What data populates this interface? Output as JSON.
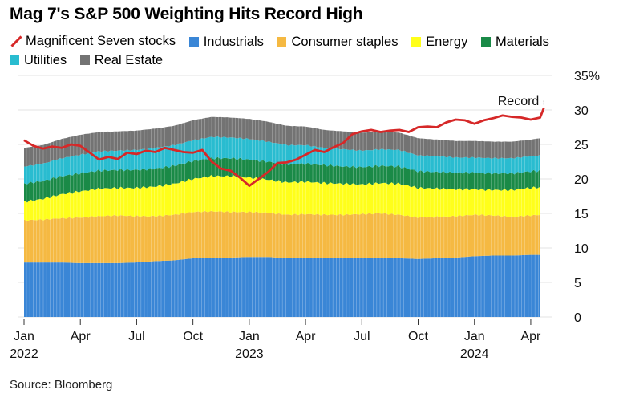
{
  "title": "Mag 7's S&P 500 Weighting Hits Record High",
  "source": "Source: Bloomberg",
  "annotation": "Record",
  "chart_data": {
    "type": "area",
    "title": "Mag 7's S&P 500 Weighting Hits Record High",
    "ylim": [
      0,
      35
    ],
    "yticks": [
      "35%",
      "30",
      "25",
      "20",
      "15",
      "10",
      "5",
      "0"
    ],
    "xticks": [
      {
        "label": "Jan",
        "year": "2022",
        "t": 0
      },
      {
        "label": "Apr",
        "year": "",
        "t": 3
      },
      {
        "label": "Jul",
        "year": "",
        "t": 6
      },
      {
        "label": "Oct",
        "year": "",
        "t": 9
      },
      {
        "label": "Jan",
        "year": "2023",
        "t": 12
      },
      {
        "label": "Apr",
        "year": "",
        "t": 15
      },
      {
        "label": "Jul",
        "year": "",
        "t": 18
      },
      {
        "label": "Oct",
        "year": "",
        "t": 21
      },
      {
        "label": "Jan",
        "year": "2024",
        "t": 24
      },
      {
        "label": "Apr",
        "year": "",
        "t": 27
      }
    ],
    "grid": true,
    "legend_position": "top",
    "x_months": [
      0,
      1,
      2,
      3,
      4,
      5,
      6,
      7,
      8,
      9,
      10,
      11,
      12,
      13,
      14,
      15,
      16,
      17,
      18,
      19,
      20,
      21,
      22,
      23,
      24,
      25,
      26,
      27,
      27.5
    ],
    "stacked_series": [
      {
        "name": "Industrials",
        "color": "#3a86d6",
        "values": [
          7.9,
          7.9,
          7.9,
          7.8,
          7.8,
          7.8,
          7.9,
          8.1,
          8.2,
          8.5,
          8.6,
          8.6,
          8.7,
          8.7,
          8.5,
          8.5,
          8.5,
          8.5,
          8.6,
          8.6,
          8.5,
          8.4,
          8.5,
          8.6,
          8.8,
          8.9,
          8.9,
          9.0,
          9.0
        ]
      },
      {
        "name": "Consumer staples",
        "color": "#f5b942",
        "values": [
          6.1,
          6.2,
          6.4,
          6.6,
          6.8,
          6.9,
          6.7,
          6.5,
          6.6,
          6.7,
          6.7,
          6.6,
          6.5,
          6.4,
          6.3,
          6.4,
          6.3,
          6.3,
          6.3,
          6.4,
          6.3,
          6.0,
          6.0,
          6.0,
          6.0,
          5.8,
          5.6,
          5.7,
          5.8
        ]
      },
      {
        "name": "Energy",
        "color": "#ffff1a",
        "values": [
          2.7,
          3.0,
          3.5,
          3.8,
          4.0,
          4.0,
          4.1,
          4.3,
          4.5,
          4.8,
          5.1,
          5.2,
          5.0,
          4.8,
          4.7,
          4.7,
          4.6,
          4.5,
          4.3,
          4.4,
          4.5,
          4.3,
          4.1,
          3.9,
          3.7,
          3.7,
          3.9,
          4.0,
          4.0
        ]
      },
      {
        "name": "Materials",
        "color": "#1a8a47",
        "values": [
          2.6,
          2.6,
          2.6,
          2.6,
          2.6,
          2.6,
          2.6,
          2.6,
          2.6,
          2.6,
          2.6,
          2.6,
          2.6,
          2.6,
          2.6,
          2.6,
          2.6,
          2.5,
          2.5,
          2.5,
          2.5,
          2.4,
          2.4,
          2.4,
          2.4,
          2.4,
          2.4,
          2.4,
          2.4
        ]
      },
      {
        "name": "Utilities",
        "color": "#29bcd0",
        "values": [
          2.5,
          2.5,
          2.6,
          2.7,
          2.8,
          2.8,
          2.9,
          3.0,
          3.0,
          3.0,
          3.1,
          3.0,
          3.0,
          2.9,
          2.8,
          2.7,
          2.5,
          2.5,
          2.4,
          2.4,
          2.4,
          2.3,
          2.3,
          2.2,
          2.2,
          2.2,
          2.2,
          2.2,
          2.2
        ]
      },
      {
        "name": "Real Estate",
        "color": "#737373",
        "values": [
          2.7,
          2.7,
          2.8,
          2.9,
          2.8,
          2.8,
          2.8,
          2.8,
          2.8,
          2.9,
          2.9,
          2.9,
          2.9,
          2.9,
          2.8,
          2.7,
          2.6,
          2.6,
          2.6,
          2.6,
          2.5,
          2.5,
          2.4,
          2.4,
          2.4,
          2.4,
          2.4,
          2.4,
          2.5
        ]
      }
    ],
    "line_series": {
      "name": "Magnificent Seven stocks",
      "color": "#d62828",
      "x": [
        0,
        0.5,
        1,
        1.5,
        2,
        2.5,
        3,
        3.5,
        4,
        4.5,
        5,
        5.5,
        6,
        6.5,
        7,
        7.5,
        8,
        8.5,
        9,
        9.5,
        10,
        10.5,
        11,
        11.5,
        12,
        12.5,
        13,
        13.5,
        14,
        14.5,
        15,
        15.5,
        16,
        16.5,
        17,
        17.5,
        18,
        18.5,
        19,
        19.5,
        20,
        20.5,
        21,
        21.5,
        22,
        22.5,
        23,
        23.5,
        24,
        24.5,
        25,
        25.5,
        26,
        26.5,
        27,
        27.5,
        27.7
      ],
      "values": [
        25.6,
        24.8,
        24.4,
        24.7,
        24.5,
        25.0,
        24.8,
        23.8,
        22.8,
        23.2,
        22.9,
        23.8,
        23.6,
        24.1,
        23.9,
        24.5,
        24.2,
        23.9,
        23.8,
        24.2,
        22.5,
        21.5,
        21.2,
        20.2,
        19.0,
        20.0,
        21.0,
        22.3,
        22.4,
        22.8,
        23.5,
        24.2,
        23.9,
        24.6,
        25.2,
        26.5,
        26.9,
        27.1,
        26.8,
        27.0,
        27.1,
        26.8,
        27.5,
        27.6,
        27.5,
        28.2,
        28.6,
        28.5,
        28.0,
        28.5,
        28.8,
        29.2,
        29.0,
        28.9,
        28.6,
        28.9,
        30.3
      ]
    }
  }
}
